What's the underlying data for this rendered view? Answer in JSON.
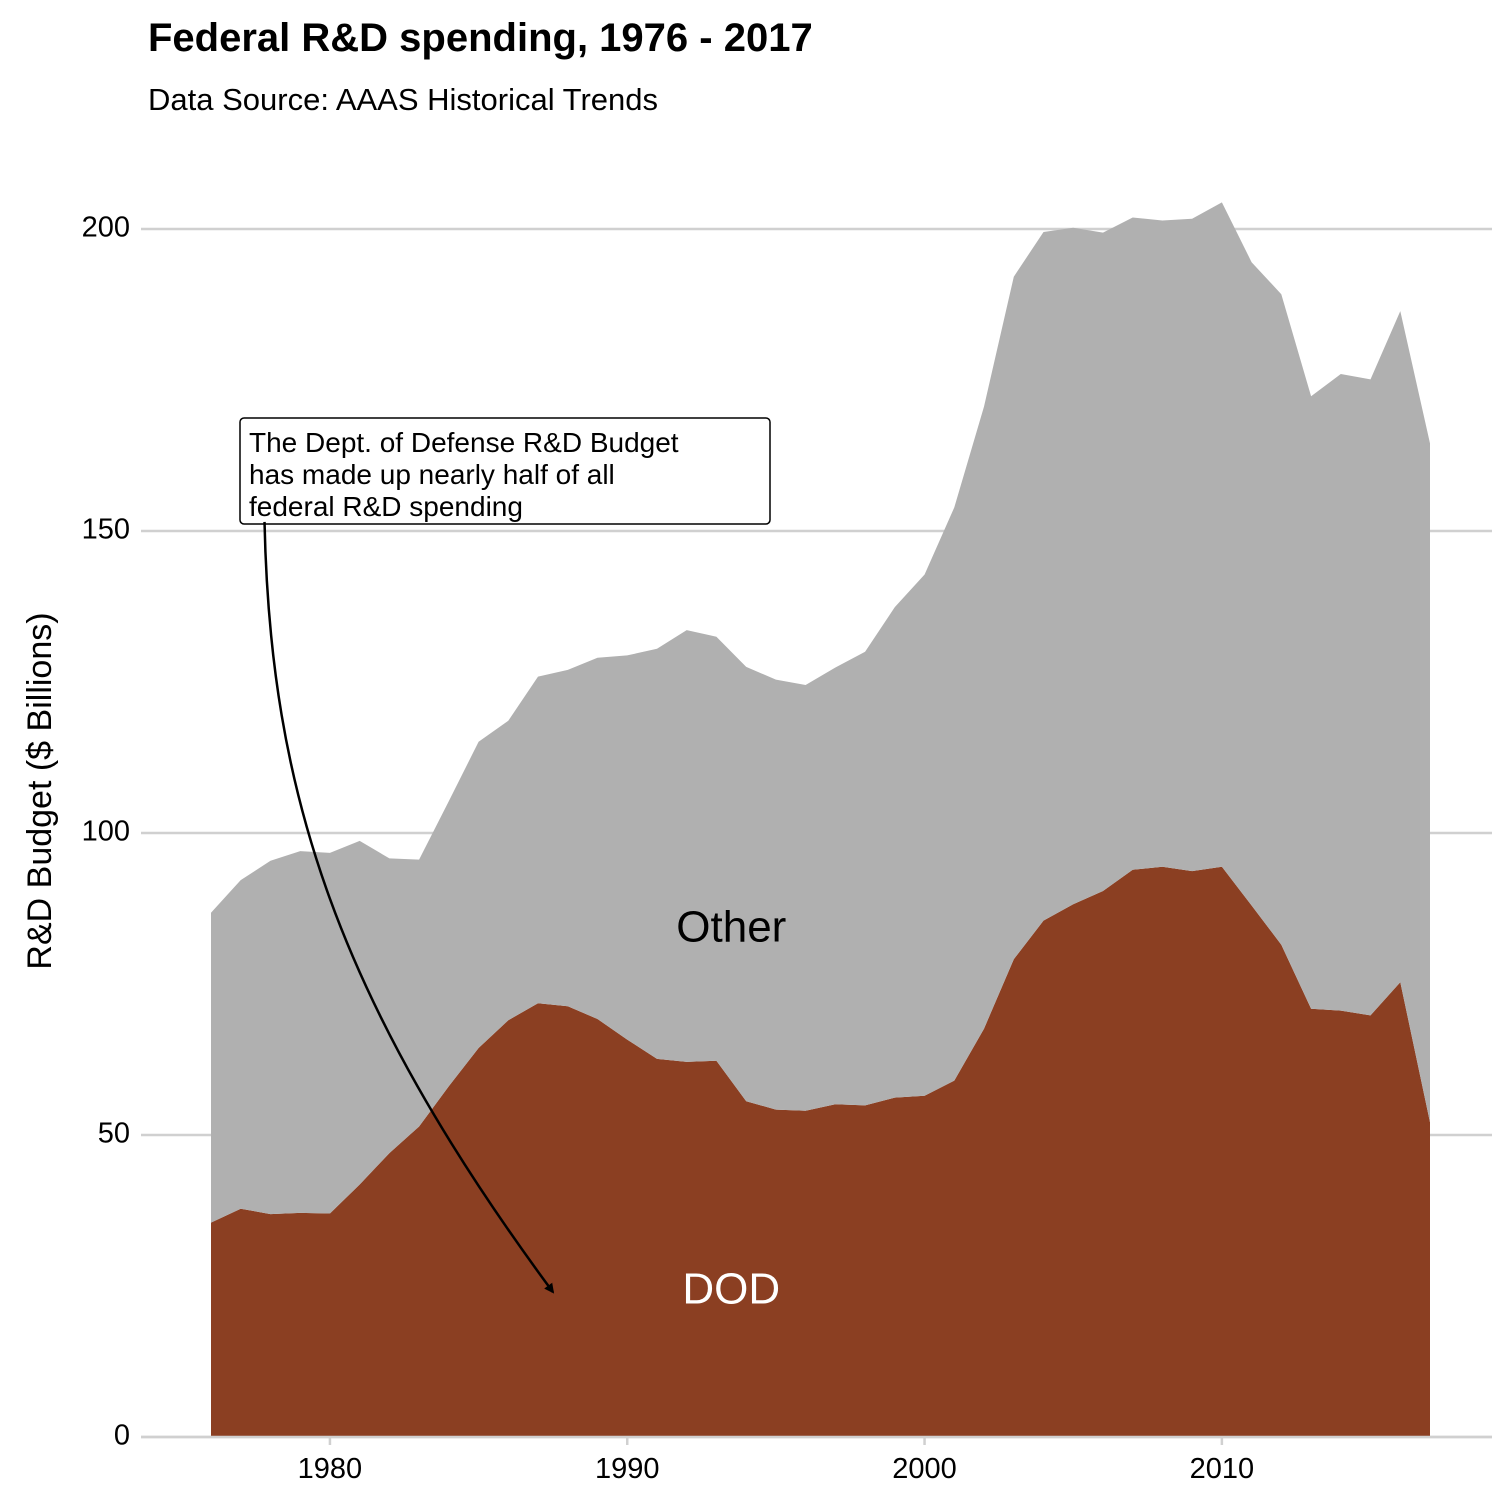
{
  "chart_data": {
    "type": "area",
    "stacked": true,
    "title": "Federal R&D spending, 1976 - 2017",
    "subtitle": "Data Source: AAAS Historical Trends",
    "xlabel": "",
    "ylabel": "R&D Budget ($ Billions)",
    "xlim": [
      1974,
      2019
    ],
    "ylim": [
      0,
      210
    ],
    "xticks": [
      1980,
      1990,
      2000,
      2010
    ],
    "yticks": [
      0,
      50,
      100,
      150,
      200
    ],
    "grid": "horizontal",
    "legend": "none",
    "x": [
      1976,
      1977,
      1978,
      1979,
      1980,
      1981,
      1982,
      1983,
      1984,
      1985,
      1986,
      1987,
      1988,
      1989,
      1990,
      1991,
      1992,
      1993,
      1994,
      1995,
      1996,
      1997,
      1998,
      1999,
      2000,
      2001,
      2002,
      2003,
      2004,
      2005,
      2006,
      2007,
      2008,
      2009,
      2010,
      2011,
      2012,
      2013,
      2014,
      2015,
      2016,
      2017
    ],
    "series": [
      {
        "name": "DOD",
        "color": "#8B3F22",
        "label_color": "#ffffff",
        "label_at": [
          1993.5,
          24
        ],
        "values": [
          35.5,
          37.8,
          36.9,
          37.1,
          37.0,
          41.8,
          47.0,
          51.4,
          58.1,
          64.4,
          69.0,
          71.8,
          71.3,
          69.2,
          65.8,
          62.6,
          62.1,
          62.3,
          55.6,
          54.2,
          54.0,
          55.1,
          54.9,
          56.2,
          56.5,
          59.0,
          67.6,
          79.1,
          85.5,
          88.2,
          90.4,
          93.9,
          94.4,
          93.7,
          94.4,
          88.0,
          81.5,
          70.9,
          70.6,
          69.8,
          75.3,
          52.1
        ]
      },
      {
        "name": "Other",
        "color": "#B0B0B0",
        "label_color": "#000000",
        "label_at": [
          1993.5,
          84
        ],
        "values": [
          51.3,
          54.4,
          58.5,
          59.9,
          59.7,
          56.9,
          48.8,
          44.2,
          47.2,
          50.7,
          49.6,
          54.1,
          55.7,
          59.8,
          63.6,
          67.9,
          71.5,
          70.2,
          71.9,
          71.2,
          70.5,
          72.3,
          75.1,
          81.2,
          86.3,
          94.9,
          103.0,
          113.0,
          114.0,
          112.0,
          109.0,
          108.0,
          107.0,
          108.0,
          110.0,
          106.5,
          107.7,
          101.4,
          105.4,
          105.3,
          111.1,
          112.4
        ]
      }
    ],
    "annotation": {
      "lines": [
        "The Dept. of Defense R&D Budget",
        "has made up nearly half of all",
        "federal R&D spending"
      ],
      "arrow_from": [
        1977.8,
        151.5
      ],
      "arrow_to": [
        1987.5,
        24
      ]
    }
  }
}
